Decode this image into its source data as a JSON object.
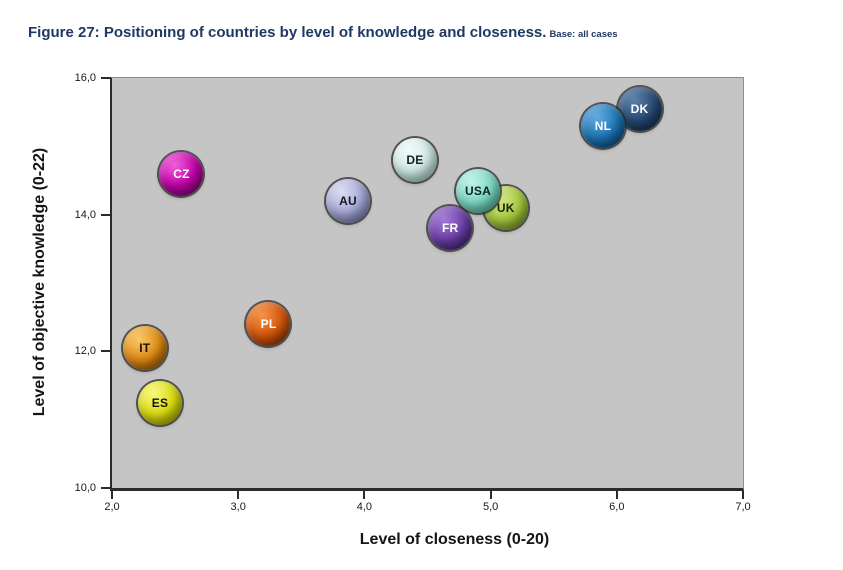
{
  "chart_data": {
    "type": "scatter",
    "title": "Figure 27: Positioning of countries by level of knowledge and closeness.",
    "subtitle": "Base: all cases",
    "xlabel": "Level of closeness (0-20)",
    "ylabel": "Level of objective knowledge (0-22)",
    "xlim": [
      2.0,
      7.0
    ],
    "ylim": [
      10.0,
      16.0
    ],
    "grid": false,
    "legend": false,
    "decimal_separator": ",",
    "plot_background": "#C5C5C5",
    "axis_color": "#2B2B2B",
    "title_color": "#1F3864",
    "xticks": [
      {
        "value": 2.0,
        "label": "2,0"
      },
      {
        "value": 3.0,
        "label": "3,0"
      },
      {
        "value": 4.0,
        "label": "4,0"
      },
      {
        "value": 5.0,
        "label": "5,0"
      },
      {
        "value": 6.0,
        "label": "6,0"
      },
      {
        "value": 7.0,
        "label": "7,0"
      }
    ],
    "yticks": [
      {
        "value": 16.0,
        "label": "16,0"
      },
      {
        "value": 14.0,
        "label": "14,0"
      },
      {
        "value": 12.0,
        "label": "12,0"
      },
      {
        "value": 10.0,
        "label": "10,0"
      }
    ],
    "points": [
      {
        "label": "CZ",
        "x": 2.55,
        "y": 14.6,
        "color": "#C000A8",
        "highlight": "#F060D8",
        "edge": "#5C0054",
        "text_color": "#FFFFFF"
      },
      {
        "label": "IT",
        "x": 2.26,
        "y": 12.05,
        "color": "#E18A14",
        "highlight": "#F8C868",
        "edge": "#7A4A00",
        "text_color": "#161007"
      },
      {
        "label": "ES",
        "x": 2.38,
        "y": 11.25,
        "color": "#DCDC0C",
        "highlight": "#F8F880",
        "edge": "#8A8A00",
        "text_color": "#161607"
      },
      {
        "label": "PL",
        "x": 3.24,
        "y": 12.4,
        "color": "#D4560C",
        "highlight": "#F49448",
        "edge": "#6E2A00",
        "text_color": "#FFFFFF"
      },
      {
        "label": "AU",
        "x": 3.87,
        "y": 14.2,
        "color": "#A4A8D6",
        "highlight": "#DCDEF2",
        "edge": "#62669A",
        "text_color": "#17171C"
      },
      {
        "label": "DE",
        "x": 4.4,
        "y": 14.8,
        "color": "#CFE9E5",
        "highlight": "#F2FBFA",
        "edge": "#8FB5B1",
        "text_color": "#172120"
      },
      {
        "label": "UK",
        "x": 5.12,
        "y": 14.1,
        "color": "#A6CB3E",
        "highlight": "#D4E68C",
        "edge": "#5C7C14",
        "text_color": "#1A2408"
      },
      {
        "label": "USA",
        "x": 4.9,
        "y": 14.35,
        "color": "#7CDAC6",
        "highlight": "#C4F2E8",
        "edge": "#389884",
        "text_color": "#0E2620"
      },
      {
        "label": "FR",
        "x": 4.68,
        "y": 13.8,
        "color": "#6B3FA5",
        "highlight": "#A47CD6",
        "edge": "#2E1262",
        "text_color": "#FFFFFF"
      },
      {
        "label": "DK",
        "x": 6.18,
        "y": 15.55,
        "color": "#264A74",
        "highlight": "#5E82AC",
        "edge": "#0E2442",
        "text_color": "#FFFFFF"
      },
      {
        "label": "NL",
        "x": 5.89,
        "y": 15.3,
        "color": "#1C74B4",
        "highlight": "#64ACE0",
        "edge": "#083A64",
        "text_color": "#FFFFFF"
      }
    ]
  }
}
